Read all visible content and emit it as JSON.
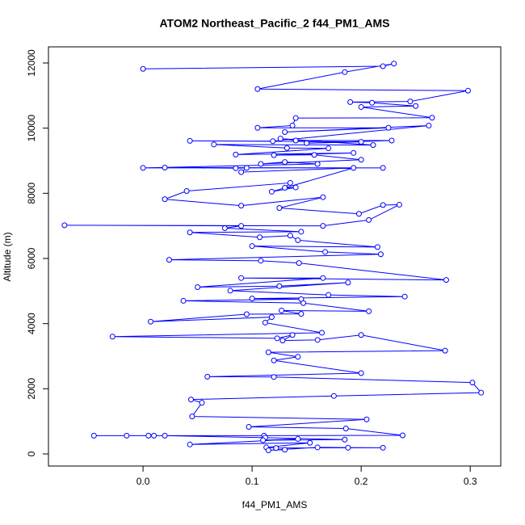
{
  "chart_data": {
    "type": "line",
    "title": "ATOM2 Northeast_Pacific_2 f44_PM1_AMS",
    "x_label": "f44_PM1_AMS",
    "y_label": "Altitude (m)",
    "color": "#0000ff",
    "xlim": [
      -0.0867,
      0.328
    ],
    "ylim": [
      -372,
      12496
    ],
    "xticks": [
      {
        "value": 0,
        "label": "0.0"
      },
      0.1,
      0.2,
      0.3
    ],
    "yticks": [
      0,
      2000,
      4000,
      6000,
      8000,
      10000,
      12000
    ],
    "x": [
      0.0,
      0.22,
      0.23,
      0.185,
      0.105,
      0.298,
      0.245,
      0.19,
      0.21,
      0.25,
      0.2,
      0.265,
      0.14,
      0.137,
      0.105,
      0.225,
      0.13,
      0.262,
      0.119,
      0.043,
      0.2,
      0.15,
      0.228,
      0.14,
      0.126,
      0.211,
      0.065,
      0.132,
      0.17,
      0.085,
      0.193,
      0.12,
      0.157,
      0.2,
      0.108,
      0.13,
      0.16,
      0.0,
      0.22,
      0.02,
      0.085,
      0.095,
      0.09,
      0.193,
      0.118,
      0.14,
      0.13,
      0.135,
      0.04,
      0.02,
      0.09,
      0.165,
      0.125,
      0.198,
      0.22,
      0.235,
      0.207,
      0.165,
      -0.072,
      0.09,
      0.075,
      0.145,
      0.043,
      0.107,
      0.135,
      0.142,
      0.215,
      0.1,
      0.167,
      0.218,
      0.024,
      0.108,
      0.143,
      0.278,
      0.09,
      0.165,
      0.05,
      0.125,
      0.188,
      0.08,
      0.17,
      0.24,
      0.1,
      0.145,
      0.037,
      0.147,
      0.207,
      0.127,
      0.145,
      0.095,
      0.007,
      0.118,
      0.112,
      0.164,
      -0.028,
      0.123,
      0.137,
      0.128,
      0.16,
      0.2,
      0.277,
      0.115,
      0.142,
      0.12,
      0.2,
      0.059,
      0.12,
      0.302,
      0.31,
      0.175,
      0.044,
      0.054,
      0.045,
      0.205,
      0.097,
      0.186,
      0.238,
      0.111,
      -0.045,
      -0.015,
      0.005,
      0.01,
      0.02,
      0.112,
      0.185,
      0.11,
      0.142,
      0.043,
      0.153,
      0.113,
      0.122,
      0.188,
      0.22,
      0.16,
      0.115,
      0.13
    ],
    "values": [
      11820,
      11900,
      11980,
      11720,
      11200,
      11150,
      10820,
      10800,
      10780,
      10680,
      10650,
      10320,
      10310,
      10080,
      10010,
      10010,
      9880,
      10080,
      9600,
      9610,
      9580,
      9540,
      9620,
      9620,
      9680,
      9480,
      9500,
      9390,
      9380,
      9190,
      9240,
      9170,
      9180,
      9030,
      8900,
      8960,
      8900,
      8780,
      8780,
      8790,
      8770,
      8780,
      8650,
      8780,
      8050,
      8180,
      8170,
      8320,
      8070,
      7820,
      7620,
      7880,
      7550,
      7370,
      7640,
      7650,
      7180,
      7000,
      7020,
      7000,
      6930,
      6820,
      6800,
      6650,
      6700,
      6560,
      6350,
      6380,
      6200,
      6130,
      5960,
      5930,
      5860,
      5340,
      5400,
      5400,
      5120,
      5150,
      5260,
      5010,
      4880,
      4830,
      4770,
      4750,
      4700,
      4630,
      4380,
      4400,
      4300,
      4290,
      4060,
      4200,
      4030,
      3720,
      3600,
      3550,
      3650,
      3480,
      3500,
      3650,
      3170,
      3120,
      2980,
      2870,
      2480,
      2370,
      2360,
      2190,
      1880,
      1780,
      1670,
      1570,
      1150,
      1060,
      830,
      780,
      570,
      560,
      560,
      560,
      560,
      560,
      560,
      500,
      440,
      420,
      460,
      290,
      340,
      200,
      180,
      190,
      190,
      200,
      110,
      130
    ]
  }
}
